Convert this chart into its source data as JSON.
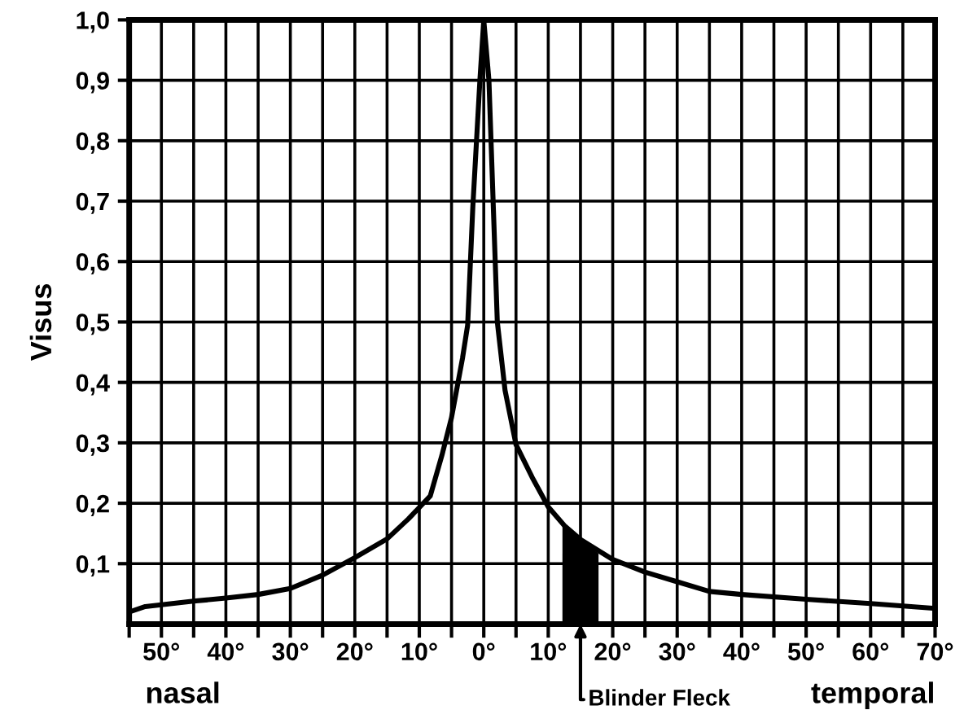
{
  "chart_data": {
    "type": "line",
    "ylabel": "Visus",
    "x": [
      -55,
      -52.5,
      -45,
      -40,
      -35,
      -30,
      -25,
      -20,
      -15,
      -11.7,
      -8.3,
      -6.5,
      -5,
      -3.3,
      -2.5,
      -1.7,
      -0.6,
      0,
      0.8,
      2.1,
      3.3,
      5,
      7.5,
      10,
      12.5,
      15,
      20,
      25,
      30,
      35,
      40,
      50,
      60,
      70
    ],
    "series": [
      {
        "color": "#000000",
        "values": [
          0.02,
          0.029,
          0.038,
          0.043,
          0.049,
          0.059,
          0.081,
          0.11,
          0.141,
          0.174,
          0.212,
          0.279,
          0.342,
          0.44,
          0.495,
          0.69,
          0.9,
          1.0,
          0.9,
          0.5,
          0.387,
          0.297,
          0.243,
          0.194,
          0.163,
          0.14,
          0.107,
          0.086,
          0.07,
          0.054,
          0.049,
          0.041,
          0.034,
          0.026
        ]
      },
      {
        "type": "area",
        "color": "#000000",
        "x": [
          12.2,
          15,
          17.8
        ],
        "values": [
          0.162,
          0.14,
          0.117
        ]
      }
    ],
    "xlim": [
      -55,
      70
    ],
    "ylim": [
      0,
      1.0
    ],
    "xticks": [
      {
        "value": -55,
        "label": null
      },
      {
        "value": -50,
        "label": "50°"
      },
      {
        "value": -45,
        "label": null
      },
      {
        "value": -40,
        "label": "40°"
      },
      {
        "value": -35,
        "label": null
      },
      {
        "value": -30,
        "label": "30°"
      },
      {
        "value": -25,
        "label": null
      },
      {
        "value": -20,
        "label": "20°"
      },
      {
        "value": -15,
        "label": null
      },
      {
        "value": -10,
        "label": "10°"
      },
      {
        "value": -5,
        "label": null
      },
      {
        "value": 0,
        "label": "0°"
      },
      {
        "value": 5,
        "label": null
      },
      {
        "value": 10,
        "label": "10°"
      },
      {
        "value": 15,
        "label": null
      },
      {
        "value": 20,
        "label": "20°"
      },
      {
        "value": 25,
        "label": null
      },
      {
        "value": 30,
        "label": "30°"
      },
      {
        "value": 35,
        "label": null
      },
      {
        "value": 40,
        "label": "40°"
      },
      {
        "value": 45,
        "label": null
      },
      {
        "value": 50,
        "label": "50°"
      },
      {
        "value": 55,
        "label": null
      },
      {
        "value": 60,
        "label": "60°"
      },
      {
        "value": 65,
        "label": null
      },
      {
        "value": 70,
        "label": "70°"
      }
    ],
    "yticks": [
      {
        "value": 0.1,
        "label": "0,1"
      },
      {
        "value": 0.2,
        "label": "0,2"
      },
      {
        "value": 0.3,
        "label": "0,3"
      },
      {
        "value": 0.4,
        "label": "0,4"
      },
      {
        "value": 0.5,
        "label": "0,5"
      },
      {
        "value": 0.6,
        "label": "0,6"
      },
      {
        "value": 0.7,
        "label": "0,7"
      },
      {
        "value": 0.8,
        "label": "0,8"
      },
      {
        "value": 0.9,
        "label": "0,9"
      },
      {
        "value": 1.0,
        "label": "1,0"
      }
    ],
    "annotations": [
      "nasal",
      "temporal",
      {
        "text": "Blinder Fleck",
        "x": 15,
        "y": 0
      }
    ],
    "grid": true,
    "marker": "none",
    "line_style": "solid"
  }
}
